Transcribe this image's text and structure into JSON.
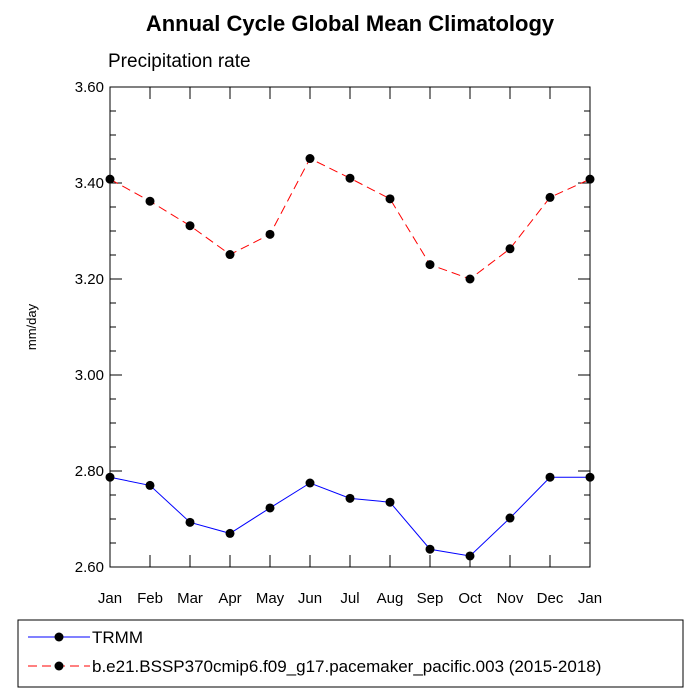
{
  "chart_data": {
    "type": "line",
    "title": "Annual Cycle Global Mean Climatology",
    "subtitle": "Precipitation rate",
    "ylabel": "mm/day",
    "xlabel": "",
    "categories": [
      "Jan",
      "Feb",
      "Mar",
      "Apr",
      "May",
      "Jun",
      "Jul",
      "Aug",
      "Sep",
      "Oct",
      "Nov",
      "Dec",
      "Jan"
    ],
    "ylim": [
      2.6,
      3.6
    ],
    "yticks": [
      "2.60",
      "2.80",
      "3.00",
      "3.20",
      "3.40",
      "3.60"
    ],
    "grid": false,
    "legend_placement": "bottom",
    "series": [
      {
        "name": "TRMM",
        "color": "#0000ff",
        "line_style": "solid",
        "marker": "filled-circle",
        "values": [
          2.787,
          2.77,
          2.693,
          2.67,
          2.723,
          2.775,
          2.743,
          2.735,
          2.637,
          2.623,
          2.702,
          2.787,
          2.787
        ]
      },
      {
        "name": "b.e21.BSSP370cmip6.f09_g17.pacemaker_pacific.003 (2015-2018)",
        "color": "#ff0000",
        "line_style": "dashed",
        "marker": "filled-circle",
        "values": [
          3.408,
          3.362,
          3.311,
          3.251,
          3.293,
          3.451,
          3.41,
          3.367,
          3.23,
          3.2,
          3.263,
          3.37,
          3.408
        ]
      }
    ]
  }
}
